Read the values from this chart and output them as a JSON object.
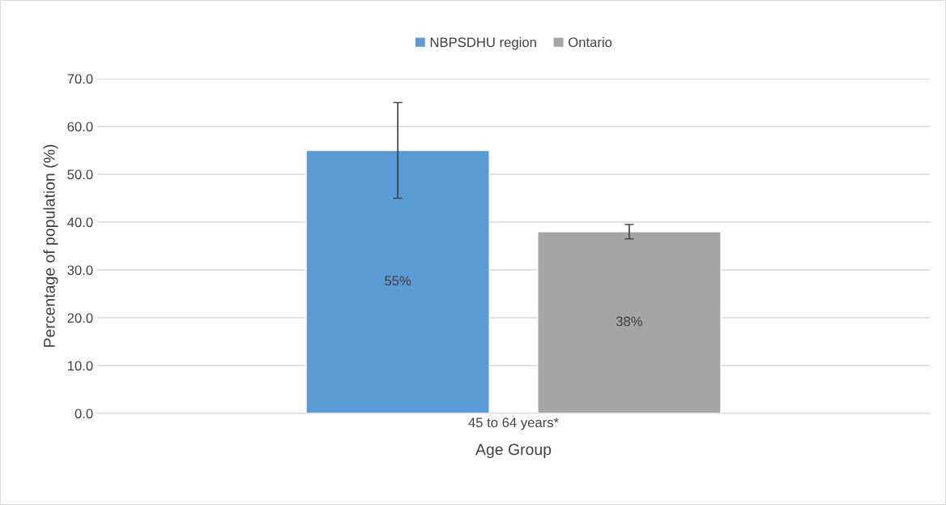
{
  "chart_data": {
    "type": "bar",
    "xlabel": "Age Group",
    "ylabel": "Percentage of population (%)",
    "categories": [
      "45 to 64 years*"
    ],
    "series": [
      {
        "name": "NBPSDHU region",
        "color": "#5b9bd5",
        "values": [
          55
        ],
        "errors": [
          10
        ],
        "value_labels": [
          "55%"
        ]
      },
      {
        "name": "Ontario",
        "color": "#a5a5a5",
        "values": [
          38
        ],
        "errors": [
          1.5
        ],
        "value_labels": [
          "38%"
        ]
      }
    ],
    "ylim": [
      0,
      70
    ],
    "yticks": [
      {
        "value": 0,
        "label": "0.0"
      },
      {
        "value": 10,
        "label": "10.0"
      },
      {
        "value": 20,
        "label": "20.0"
      },
      {
        "value": 30,
        "label": "30.0"
      },
      {
        "value": 40,
        "label": "40.0"
      },
      {
        "value": 50,
        "label": "50.0"
      },
      {
        "value": 60,
        "label": "60.0"
      },
      {
        "value": 70,
        "label": "70.0"
      }
    ],
    "grid": "y",
    "legend": "top"
  }
}
